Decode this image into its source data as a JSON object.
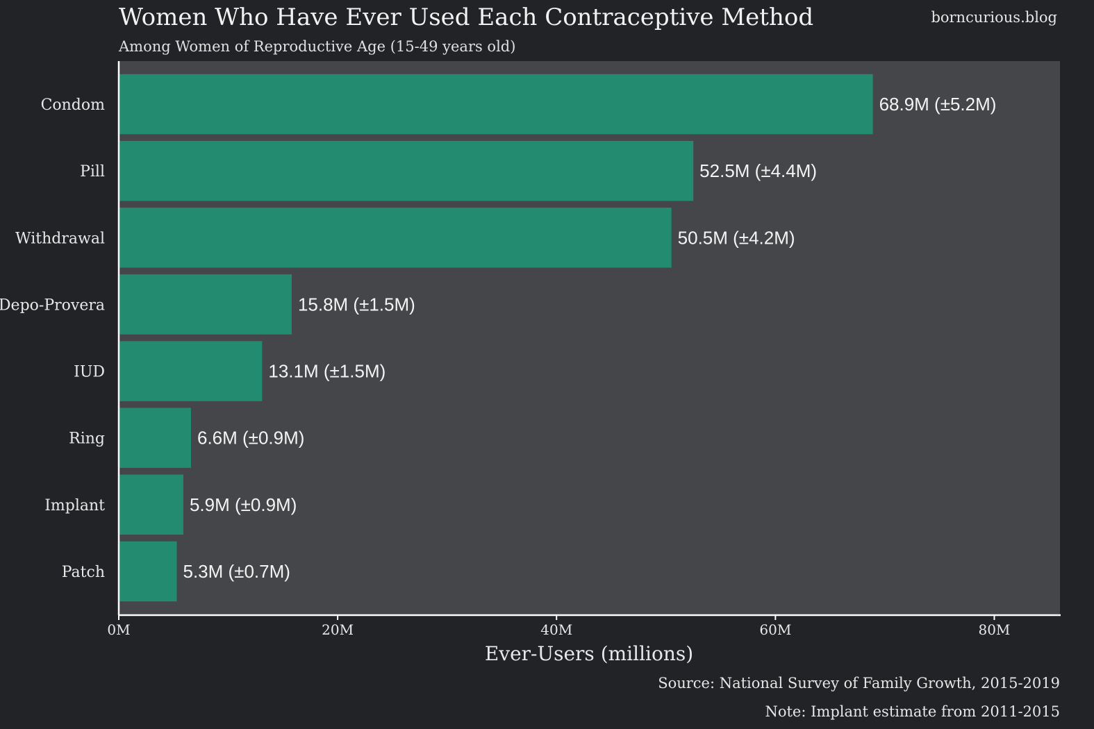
{
  "chart_data": {
    "type": "bar",
    "orientation": "horizontal",
    "title": "Women Who Have Ever Used Each Contraceptive Method",
    "subtitle": "Among Women of Reproductive Age (15-49 years old)",
    "watermark": "borncurious.blog",
    "xlabel": "Ever-Users (millions)",
    "ylabel": "",
    "xlim": [
      0,
      86
    ],
    "x_ticks": [
      {
        "value": 0,
        "label": "0M"
      },
      {
        "value": 20,
        "label": "20M"
      },
      {
        "value": 40,
        "label": "40M"
      },
      {
        "value": 60,
        "label": "60M"
      },
      {
        "value": 80,
        "label": "80M"
      }
    ],
    "categories": [
      "Condom",
      "Pill",
      "Withdrawal",
      "Depo-Provera",
      "IUD",
      "Ring",
      "Implant",
      "Patch"
    ],
    "values": [
      68.9,
      52.5,
      50.5,
      15.8,
      13.1,
      6.6,
      5.9,
      5.3
    ],
    "data_labels": [
      "68.9M (±5.2M)",
      "52.5M (±4.4M)",
      "50.5M (±4.2M)",
      "15.8M (±1.5M)",
      "13.1M (±1.5M)",
      "6.6M (±0.9M)",
      "5.9M (±0.9M)",
      "5.3M (±0.7M)"
    ],
    "grid": false,
    "legend": "none",
    "source": "Source: National Survey of Family Growth, 2015-2019",
    "note": "Note: Implant estimate from 2011-2015",
    "colors": {
      "background": "#222326",
      "panel": "#454649",
      "bar": "#238b6f",
      "text": "#e8e8e8"
    }
  }
}
